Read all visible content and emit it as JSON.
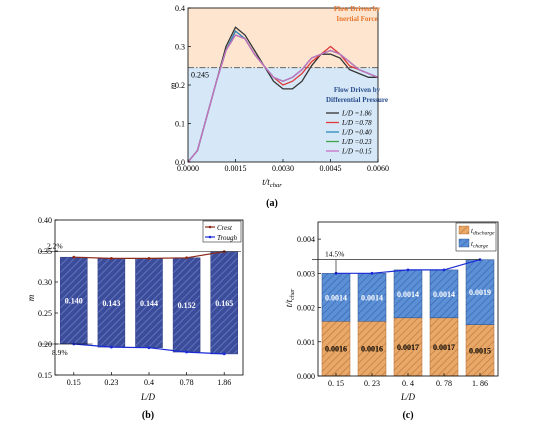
{
  "chart_data": [
    {
      "panel": "(a)",
      "type": "line",
      "xlabel": "t/t_char",
      "ylabel": "m̄",
      "xlim": [
        0,
        0.006
      ],
      "ylim": [
        0,
        0.4
      ],
      "xticks": [
        "0.0000",
        "0.0015",
        "0.0030",
        "0.0045",
        "0.0060"
      ],
      "yticks": [
        "0.0",
        "0.1",
        "0.2",
        "0.3",
        "0.4"
      ],
      "threshold": {
        "value": 0.245,
        "label": "0.245"
      },
      "zones": {
        "upper": "Flow Driven by Inertial Force",
        "upper_line1": "Flow Driven by",
        "upper_line2": "Inertial Force",
        "lower_line1": "Flow Driven by",
        "lower_line2": "Differential Pressure",
        "upper_color": "#fde5d0",
        "lower_color": "#d6e8f7"
      },
      "series": [
        {
          "name": "L/D =1.86",
          "color": "#333333",
          "x": [
            0,
            0.0003,
            0.0006,
            0.0009,
            0.0012,
            0.0015,
            0.0018,
            0.0021,
            0.0024,
            0.0027,
            0.003,
            0.0033,
            0.0036,
            0.0039,
            0.0042,
            0.0045,
            0.0048,
            0.0051,
            0.0054,
            0.0057,
            0.006
          ],
          "y": [
            0,
            0.03,
            0.12,
            0.21,
            0.3,
            0.35,
            0.33,
            0.29,
            0.25,
            0.21,
            0.19,
            0.19,
            0.21,
            0.25,
            0.28,
            0.28,
            0.27,
            0.24,
            0.23,
            0.22,
            0.22
          ]
        },
        {
          "name": "L/D =0.78",
          "color": "#e03a3a",
          "x": [
            0,
            0.0003,
            0.0006,
            0.0009,
            0.0012,
            0.0015,
            0.0018,
            0.0021,
            0.0024,
            0.0027,
            0.003,
            0.0033,
            0.0036,
            0.0039,
            0.0042,
            0.0045,
            0.0048,
            0.0051,
            0.0054,
            0.0057,
            0.006
          ],
          "y": [
            0,
            0.03,
            0.12,
            0.21,
            0.29,
            0.34,
            0.32,
            0.28,
            0.25,
            0.22,
            0.2,
            0.21,
            0.23,
            0.26,
            0.28,
            0.3,
            0.28,
            0.25,
            0.24,
            0.23,
            0.22
          ]
        },
        {
          "name": "L/D =0.40",
          "color": "#2a8bbf",
          "x": [
            0,
            0.0003,
            0.0006,
            0.0009,
            0.0012,
            0.0015,
            0.0018,
            0.0021,
            0.0024,
            0.0027,
            0.003,
            0.0033,
            0.0036,
            0.0039,
            0.0042,
            0.0045,
            0.0048,
            0.0051,
            0.0054,
            0.0057,
            0.006
          ],
          "y": [
            0,
            0.03,
            0.12,
            0.21,
            0.29,
            0.34,
            0.32,
            0.28,
            0.25,
            0.22,
            0.21,
            0.22,
            0.24,
            0.27,
            0.28,
            0.29,
            0.28,
            0.26,
            0.24,
            0.23,
            0.22
          ]
        },
        {
          "name": "L/D =0.23",
          "color": "#3fa64a",
          "x": [
            0,
            0.0003,
            0.0006,
            0.0009,
            0.0012,
            0.0015,
            0.0018,
            0.0021,
            0.0024,
            0.0027,
            0.003,
            0.0033,
            0.0036,
            0.0039,
            0.0042,
            0.0045,
            0.0048,
            0.0051,
            0.0054,
            0.0057,
            0.006
          ],
          "y": [
            0,
            0.03,
            0.12,
            0.21,
            0.29,
            0.33,
            0.32,
            0.28,
            0.25,
            0.22,
            0.21,
            0.22,
            0.24,
            0.27,
            0.28,
            0.29,
            0.28,
            0.26,
            0.24,
            0.23,
            0.22
          ]
        },
        {
          "name": "L/D =0.15",
          "color": "#c86fc8",
          "x": [
            0,
            0.0003,
            0.0006,
            0.0009,
            0.0012,
            0.0015,
            0.0018,
            0.0021,
            0.0024,
            0.0027,
            0.003,
            0.0033,
            0.0036,
            0.0039,
            0.0042,
            0.0045,
            0.0048,
            0.0051,
            0.0054,
            0.0057,
            0.006
          ],
          "y": [
            0,
            0.03,
            0.12,
            0.21,
            0.29,
            0.33,
            0.32,
            0.28,
            0.25,
            0.22,
            0.21,
            0.22,
            0.24,
            0.27,
            0.28,
            0.29,
            0.28,
            0.26,
            0.24,
            0.23,
            0.22
          ]
        }
      ]
    },
    {
      "panel": "(b)",
      "type": "bar",
      "xlabel": "L/D",
      "ylabel": "m̄",
      "ylim": [
        0.15,
        0.4
      ],
      "yticks": [
        "0.15",
        "0.20",
        "0.25",
        "0.30",
        "0.35",
        "0.40"
      ],
      "categories": [
        "0.15",
        "0.23",
        "0.4",
        "0.78",
        "1.86"
      ],
      "crest": [
        0.34,
        0.338,
        0.338,
        0.339,
        0.349
      ],
      "trough": [
        0.2,
        0.195,
        0.194,
        0.187,
        0.184
      ],
      "amplitude_labels": [
        "0.140",
        "0.143",
        "0.144",
        "0.152",
        "0.165"
      ],
      "legend": [
        "Crest",
        "Trough"
      ],
      "annotations": [
        "2.2%",
        "8.9%"
      ],
      "bar_color": "#3b4c9b",
      "crest_color": "#8b2a1a",
      "trough_color": "#1a2bd6"
    },
    {
      "panel": "(c)",
      "type": "bar",
      "xlabel": "L/D",
      "ylabel": "t/t_char",
      "ylim": [
        0,
        0.0045
      ],
      "yticks": [
        "0.000",
        "0.001",
        "0.002",
        "0.003",
        "0.004"
      ],
      "categories": [
        "0. 15",
        "0. 23",
        "0. 4",
        "0. 78",
        "1. 86"
      ],
      "series": [
        {
          "name": "t_discharge",
          "values": [
            0.0016,
            0.0016,
            0.0017,
            0.0017,
            0.0015
          ],
          "labels": [
            "0.0016",
            "0.0016",
            "0.0017",
            "0.0017",
            "0.0015"
          ],
          "color": "#e8a868"
        },
        {
          "name": "t_charge",
          "values": [
            0.0014,
            0.0014,
            0.0014,
            0.0014,
            0.0019
          ],
          "labels": [
            "0.0014",
            "0.0014",
            "0.0014",
            "0.0014",
            "0.0019"
          ],
          "color": "#5b8fd6"
        }
      ],
      "legend": [
        "t discharge",
        "t charge"
      ],
      "annotations": [
        "14.5%"
      ],
      "trend_color": "#1a2bd6"
    }
  ],
  "captions": {
    "a": "(a)",
    "b": "(b)",
    "c": "(c)"
  },
  "legend_sub": {
    "discharge": "discharge",
    "charge": "charge",
    "char": "char"
  },
  "axis_sym": {
    "t": "t",
    "over": "/",
    "mbar": "m",
    "LD": "L/D"
  }
}
